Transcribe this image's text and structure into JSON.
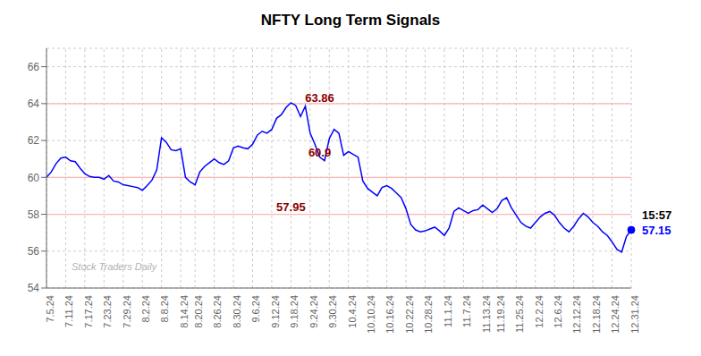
{
  "chart_data": {
    "type": "line",
    "title": "NFTY Long Term Signals",
    "categories": [
      "7.5.24",
      null,
      null,
      null,
      "7.11.24",
      null,
      null,
      null,
      "7.17.24",
      null,
      null,
      null,
      "7.23.24",
      null,
      null,
      null,
      "7.29.24",
      null,
      null,
      null,
      "8.2.24",
      null,
      null,
      null,
      "8.8.24",
      null,
      null,
      null,
      "8.14.24",
      null,
      null,
      "8.20.24",
      null,
      null,
      null,
      "8.26.24",
      null,
      null,
      null,
      "8.30.24",
      null,
      null,
      null,
      "9.6.24",
      null,
      null,
      null,
      "9.12.24",
      null,
      null,
      null,
      "9.18.24",
      null,
      null,
      null,
      "9.24.24",
      null,
      null,
      null,
      "9.30.24",
      null,
      null,
      null,
      "10.4.24",
      null,
      null,
      null,
      "10.10.24",
      null,
      null,
      null,
      "10.16.24",
      null,
      null,
      null,
      "10.22.24",
      null,
      null,
      null,
      "10.28.24",
      null,
      null,
      null,
      "11.1.24",
      null,
      null,
      null,
      "11.7.24",
      null,
      null,
      null,
      "11.13.24",
      null,
      null,
      "11.19.24",
      null,
      null,
      null,
      "11.25.24",
      null,
      null,
      null,
      "12.2.24",
      null,
      null,
      null,
      "12.6.24",
      null,
      null,
      null,
      "12.12.24",
      null,
      null,
      null,
      "12.18.24",
      null,
      null,
      null,
      "12.24.24",
      null,
      null,
      null,
      "12.31.24"
    ],
    "values": [
      60.0,
      60.3,
      60.75,
      61.05,
      61.1,
      60.9,
      60.85,
      60.5,
      60.2,
      60.05,
      60.0,
      60.0,
      59.9,
      60.1,
      59.8,
      59.75,
      59.6,
      59.55,
      59.5,
      59.45,
      59.3,
      59.55,
      59.85,
      60.4,
      62.15,
      61.9,
      61.5,
      61.45,
      61.55,
      60.0,
      59.75,
      59.6,
      60.3,
      60.6,
      60.8,
      61.0,
      60.8,
      60.7,
      60.9,
      61.6,
      61.7,
      61.6,
      61.55,
      61.8,
      62.3,
      62.5,
      62.4,
      62.6,
      63.2,
      63.4,
      63.8,
      64.05,
      63.9,
      63.3,
      63.86,
      62.4,
      61.8,
      61.1,
      60.9,
      62.1,
      62.6,
      62.4,
      61.2,
      61.4,
      61.25,
      61.1,
      59.8,
      59.4,
      59.2,
      59.0,
      59.45,
      59.55,
      59.4,
      59.15,
      58.9,
      58.3,
      57.45,
      57.15,
      57.05,
      57.1,
      57.2,
      57.3,
      57.1,
      56.85,
      57.25,
      58.15,
      58.35,
      58.2,
      58.05,
      58.2,
      58.25,
      58.5,
      58.3,
      58.1,
      58.3,
      58.75,
      58.9,
      58.35,
      57.95,
      57.55,
      57.35,
      57.25,
      57.55,
      57.85,
      58.05,
      58.15,
      57.95,
      57.55,
      57.25,
      57.05,
      57.35,
      57.75,
      58.05,
      57.85,
      57.55,
      57.35,
      57.05,
      56.85,
      56.5,
      56.1,
      55.95,
      56.8,
      57.15
    ],
    "color": "blue",
    "ylim": [
      54,
      67
    ],
    "yticks": [
      54,
      56,
      58,
      60,
      62,
      64,
      66
    ],
    "grid": true,
    "hlines": {
      "values": [
        58.0,
        60.0,
        64.0
      ],
      "color": "#ffb3b3"
    },
    "annotations": [
      {
        "text": "63.86",
        "x": 57,
        "y": 63.86,
        "color": "darkred"
      },
      {
        "text": "60.9",
        "x": 57,
        "y": 60.9,
        "color": "darkred"
      },
      {
        "text": "57.95",
        "x": 51,
        "y": 57.95,
        "color": "darkred"
      },
      {
        "text": "Stock Traders Daily",
        "color": "gray"
      }
    ],
    "end_labels": [
      {
        "text": "15:57",
        "color": "black"
      },
      {
        "text": "57.15",
        "value": 57.15,
        "color": "blue"
      }
    ]
  }
}
